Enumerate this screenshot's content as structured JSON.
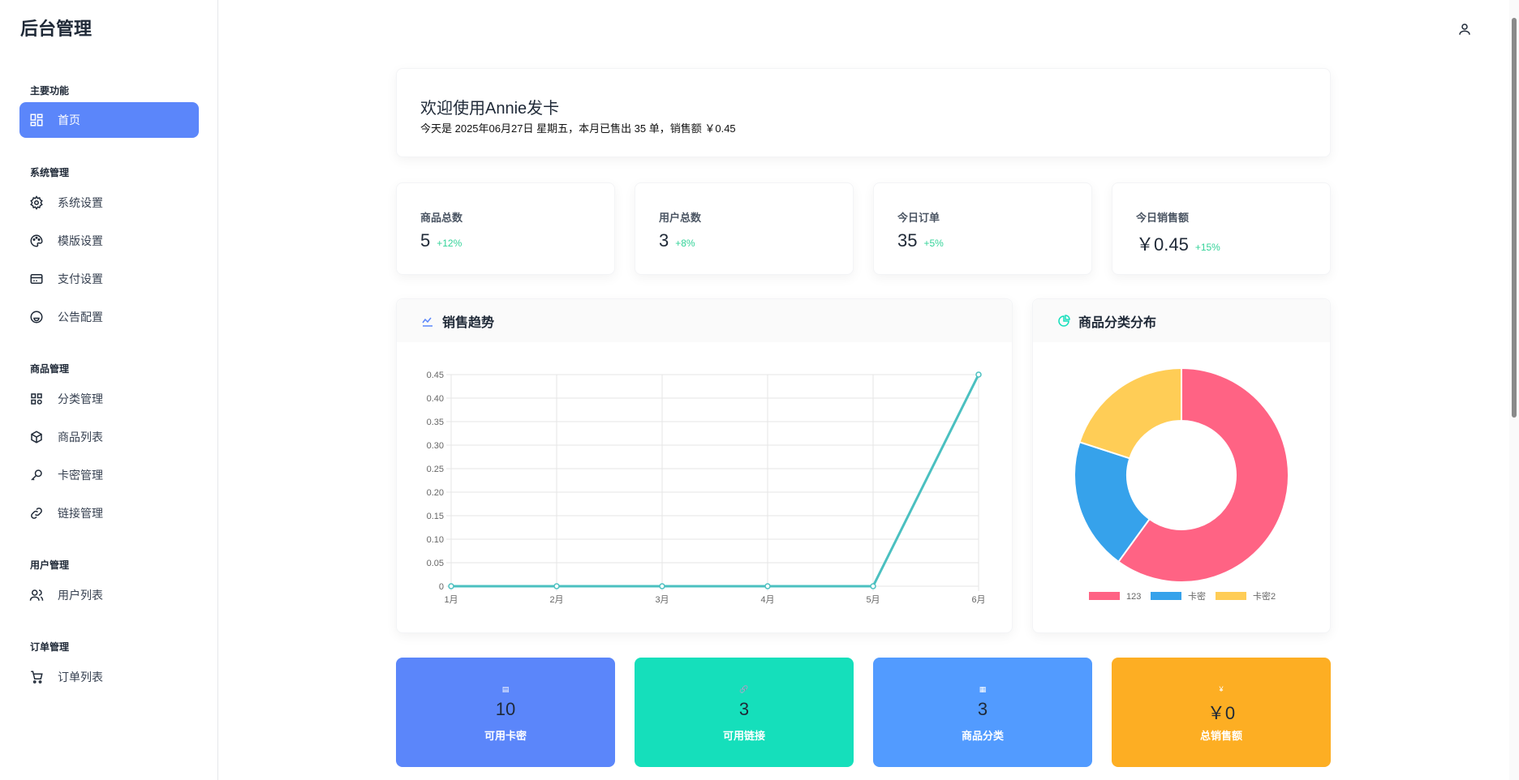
{
  "sidebar": {
    "title": "后台管理",
    "sections": [
      {
        "label": "主要功能",
        "items": [
          {
            "label": "首页",
            "icon": "dashboard-icon",
            "active": true
          }
        ]
      },
      {
        "label": "系统管理",
        "items": [
          {
            "label": "系统设置",
            "icon": "gear-icon"
          },
          {
            "label": "模版设置",
            "icon": "palette-icon"
          },
          {
            "label": "支付设置",
            "icon": "credit-card-icon"
          },
          {
            "label": "公告配置",
            "icon": "smile-icon"
          }
        ]
      },
      {
        "label": "商品管理",
        "items": [
          {
            "label": "分类管理",
            "icon": "grid-icon"
          },
          {
            "label": "商品列表",
            "icon": "box-icon"
          },
          {
            "label": "卡密管理",
            "icon": "key-icon"
          },
          {
            "label": "链接管理",
            "icon": "link-icon"
          }
        ]
      },
      {
        "label": "用户管理",
        "items": [
          {
            "label": "用户列表",
            "icon": "users-icon"
          }
        ]
      },
      {
        "label": "订单管理",
        "items": [
          {
            "label": "订单列表",
            "icon": "cart-icon"
          }
        ]
      }
    ]
  },
  "header": {
    "user_icon": "user-icon"
  },
  "welcome": {
    "title": "欢迎使用Annie发卡",
    "subtitle": "今天是 2025年06月27日 星期五，本月已售出 35 单，销售额 ￥0.45"
  },
  "stats": [
    {
      "label": "商品总数",
      "value": "5",
      "trend": "+12%"
    },
    {
      "label": "用户总数",
      "value": "3",
      "trend": "+8%"
    },
    {
      "label": "今日订单",
      "value": "35",
      "trend": "+5%"
    },
    {
      "label": "今日销售额",
      "value": "￥0.45",
      "trend": "+15%"
    }
  ],
  "charts_titles": {
    "line": "销售趋势",
    "pie": "商品分类分布"
  },
  "chart_data": [
    {
      "type": "line",
      "categories": [
        "1月",
        "2月",
        "3月",
        "4月",
        "5月",
        "6月"
      ],
      "values": [
        0,
        0,
        0,
        0,
        0,
        0.45
      ],
      "ylim": [
        0,
        0.45
      ],
      "yticks": [
        "0",
        "0.05",
        "0.10",
        "0.15",
        "0.20",
        "0.25",
        "0.30",
        "0.35",
        "0.40",
        "0.45"
      ],
      "grid": true,
      "color": "#4bc0c0"
    },
    {
      "type": "pie",
      "donut": true,
      "categories": [
        "123",
        "卡密",
        "卡密2"
      ],
      "values": [
        3,
        1,
        1
      ],
      "colors": [
        "#ff6384",
        "#36a2eb",
        "#ffcd56"
      ],
      "legend": "bottom"
    }
  ],
  "tiles": [
    {
      "icon": "card-icon",
      "glyph": "▤",
      "value": "10",
      "label": "可用卡密",
      "color": "#5b86fa"
    },
    {
      "icon": "link-icon",
      "glyph": "🔗",
      "value": "3",
      "label": "可用链接",
      "color": "#15dfbb"
    },
    {
      "icon": "grid-icon",
      "glyph": "▦",
      "value": "3",
      "label": "商品分类",
      "color": "#529bff"
    },
    {
      "icon": "yen-icon",
      "glyph": "¥",
      "value": "￥0",
      "label": "总销售额",
      "color": "#fdae23"
    }
  ]
}
